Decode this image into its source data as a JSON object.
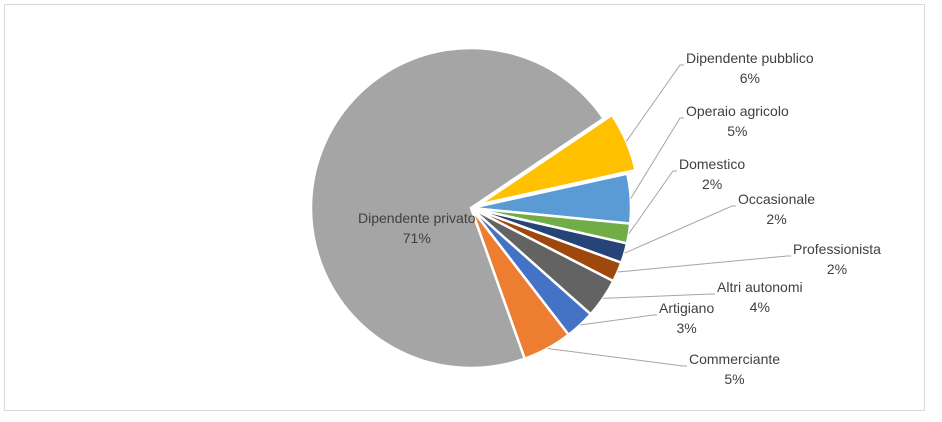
{
  "chart_data": {
    "type": "pie",
    "title": "",
    "slices": [
      {
        "label": "Dipendente pubblico",
        "pct_label": "6%",
        "value": 6,
        "color": "#ffc000"
      },
      {
        "label": "Operaio agricolo",
        "pct_label": "5%",
        "value": 5,
        "color": "#5b9bd5"
      },
      {
        "label": "Domestico",
        "pct_label": "2%",
        "value": 2,
        "color": "#70ad47"
      },
      {
        "label": "Occasionale",
        "pct_label": "2%",
        "value": 2,
        "color": "#264478"
      },
      {
        "label": "Professionista",
        "pct_label": "2%",
        "value": 2,
        "color": "#9e480e"
      },
      {
        "label": "Altri autonomi",
        "pct_label": "4%",
        "value": 4,
        "color": "#636363"
      },
      {
        "label": "Artigiano",
        "pct_label": "3%",
        "value": 3,
        "color": "#4472c4"
      },
      {
        "label": "Commerciante",
        "pct_label": "5%",
        "value": 5,
        "color": "#ed7d31"
      },
      {
        "label": "Dipendente privato",
        "pct_label": "71%",
        "value": 71,
        "color": "#a5a5a5"
      }
    ],
    "legend": "none",
    "data_labels": "outside-with-leader-lines"
  }
}
